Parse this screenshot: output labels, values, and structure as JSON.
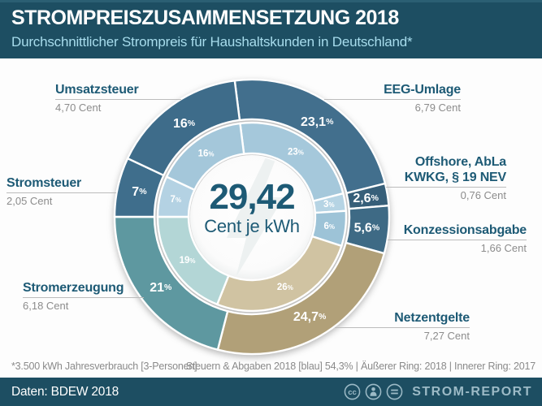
{
  "header": {
    "title": "STROMPREISZUSAMMENSETZUNG 2018",
    "subtitle": "Durchschnittlicher Strompreis für Haushaltskunden in Deutschland*"
  },
  "center": {
    "value": "29,42",
    "unit": "Cent je kWh"
  },
  "callouts": {
    "umsatzsteuer": {
      "label": "Umsatzsteuer",
      "value": "4,70 Cent"
    },
    "stromsteuer": {
      "label": "Stromsteuer",
      "value": "2,05 Cent"
    },
    "stromerzeugung": {
      "label": "Stromerzeugung",
      "value": "6,18 Cent"
    },
    "eeg": {
      "label": "EEG-Umlage",
      "value": "6,79 Cent"
    },
    "offshore": {
      "label_line1": "Offshore, AbLa",
      "label_line2": "KWKG, § 19 NEV",
      "value": "0,76 Cent"
    },
    "konzession": {
      "label": "Konzessionsabgabe",
      "value": "1,66 Cent"
    },
    "netzentgelte": {
      "label": "Netzentgelte",
      "value": "7,27 Cent"
    }
  },
  "footnotes": {
    "left": "*3.500 kWh Jahresverbrauch [3-Personen]",
    "right": "Steuern & Abgaben 2018 [blau] 54,3%   |   Äußerer Ring: 2018   |   Innerer Ring: 2017"
  },
  "footer": {
    "source": "Daten: BDEW 2018",
    "brand": "STROM-REPORT"
  },
  "colors": {
    "header_bg": "#1d4e62",
    "accent_teal": "#1d5a75",
    "tax_blue": "#3e6c8a",
    "netz_tan": "#b1a078",
    "erzeugung_teal": "#5e98a0"
  },
  "chart_data": {
    "type": "pie",
    "subtype": "double-ring-donut",
    "title": "Strompreiszusammensetzung 2018",
    "center_value": "29,42",
    "center_unit": "Cent je kWh",
    "start_angle_deg": -7.2,
    "legend_note": "Steuern & Abgaben 2018 [blau] 54,3%",
    "ring_note": "Äußerer Ring: 2018, Innerer Ring: 2017",
    "categories": [
      "EEG-Umlage",
      "Offshore, AbLa KWKG, § 19 NEV",
      "Konzessionsabgabe",
      "Netzentgelte",
      "Stromerzeugung",
      "Stromsteuer",
      "Umsatzsteuer"
    ],
    "cent_values_2018": [
      6.79,
      0.76,
      1.66,
      7.27,
      6.18,
      2.05,
      4.7
    ],
    "rings": [
      {
        "year": "2018",
        "segments": [
          {
            "key": "eeg-umlage",
            "pct": 23.1,
            "label": "23,1",
            "color": "#426f8d"
          },
          {
            "key": "offshore-abla",
            "pct": 2.6,
            "label": "2,6",
            "color": "#375f79"
          },
          {
            "key": "konzessionsabgabe",
            "pct": 5.6,
            "label": "5,6",
            "color": "#3e6a85"
          },
          {
            "key": "netzentgelte",
            "pct": 24.7,
            "label": "24,7",
            "color": "#b1a078"
          },
          {
            "key": "stromerzeugung",
            "pct": 21,
            "label": "21",
            "color": "#5e98a0"
          },
          {
            "key": "stromsteuer",
            "pct": 7,
            "label": "7",
            "color": "#3f6e8c"
          },
          {
            "key": "umsatzsteuer",
            "pct": 16,
            "label": "16",
            "color": "#3e6c8a"
          }
        ]
      },
      {
        "year": "2017",
        "segments": [
          {
            "key": "eeg-umlage",
            "pct": 23,
            "label": "23",
            "color": "#a5c8db"
          },
          {
            "key": "offshore-abla",
            "pct": 3,
            "label": "3",
            "color": "#b6d4e4"
          },
          {
            "key": "konzessionsabgabe",
            "pct": 6,
            "label": "6",
            "color": "#9dc3d7"
          },
          {
            "key": "netzentgelte",
            "pct": 26,
            "label": "26",
            "color": "#d0c3a2"
          },
          {
            "key": "stromerzeugung",
            "pct": 19,
            "label": "19",
            "color": "#b3d6d6"
          },
          {
            "key": "stromsteuer",
            "pct": 7,
            "label": "7",
            "color": "#b4d2e3"
          },
          {
            "key": "umsatzsteuer",
            "pct": 16,
            "label": "16",
            "color": "#a4c7da"
          }
        ]
      }
    ]
  }
}
